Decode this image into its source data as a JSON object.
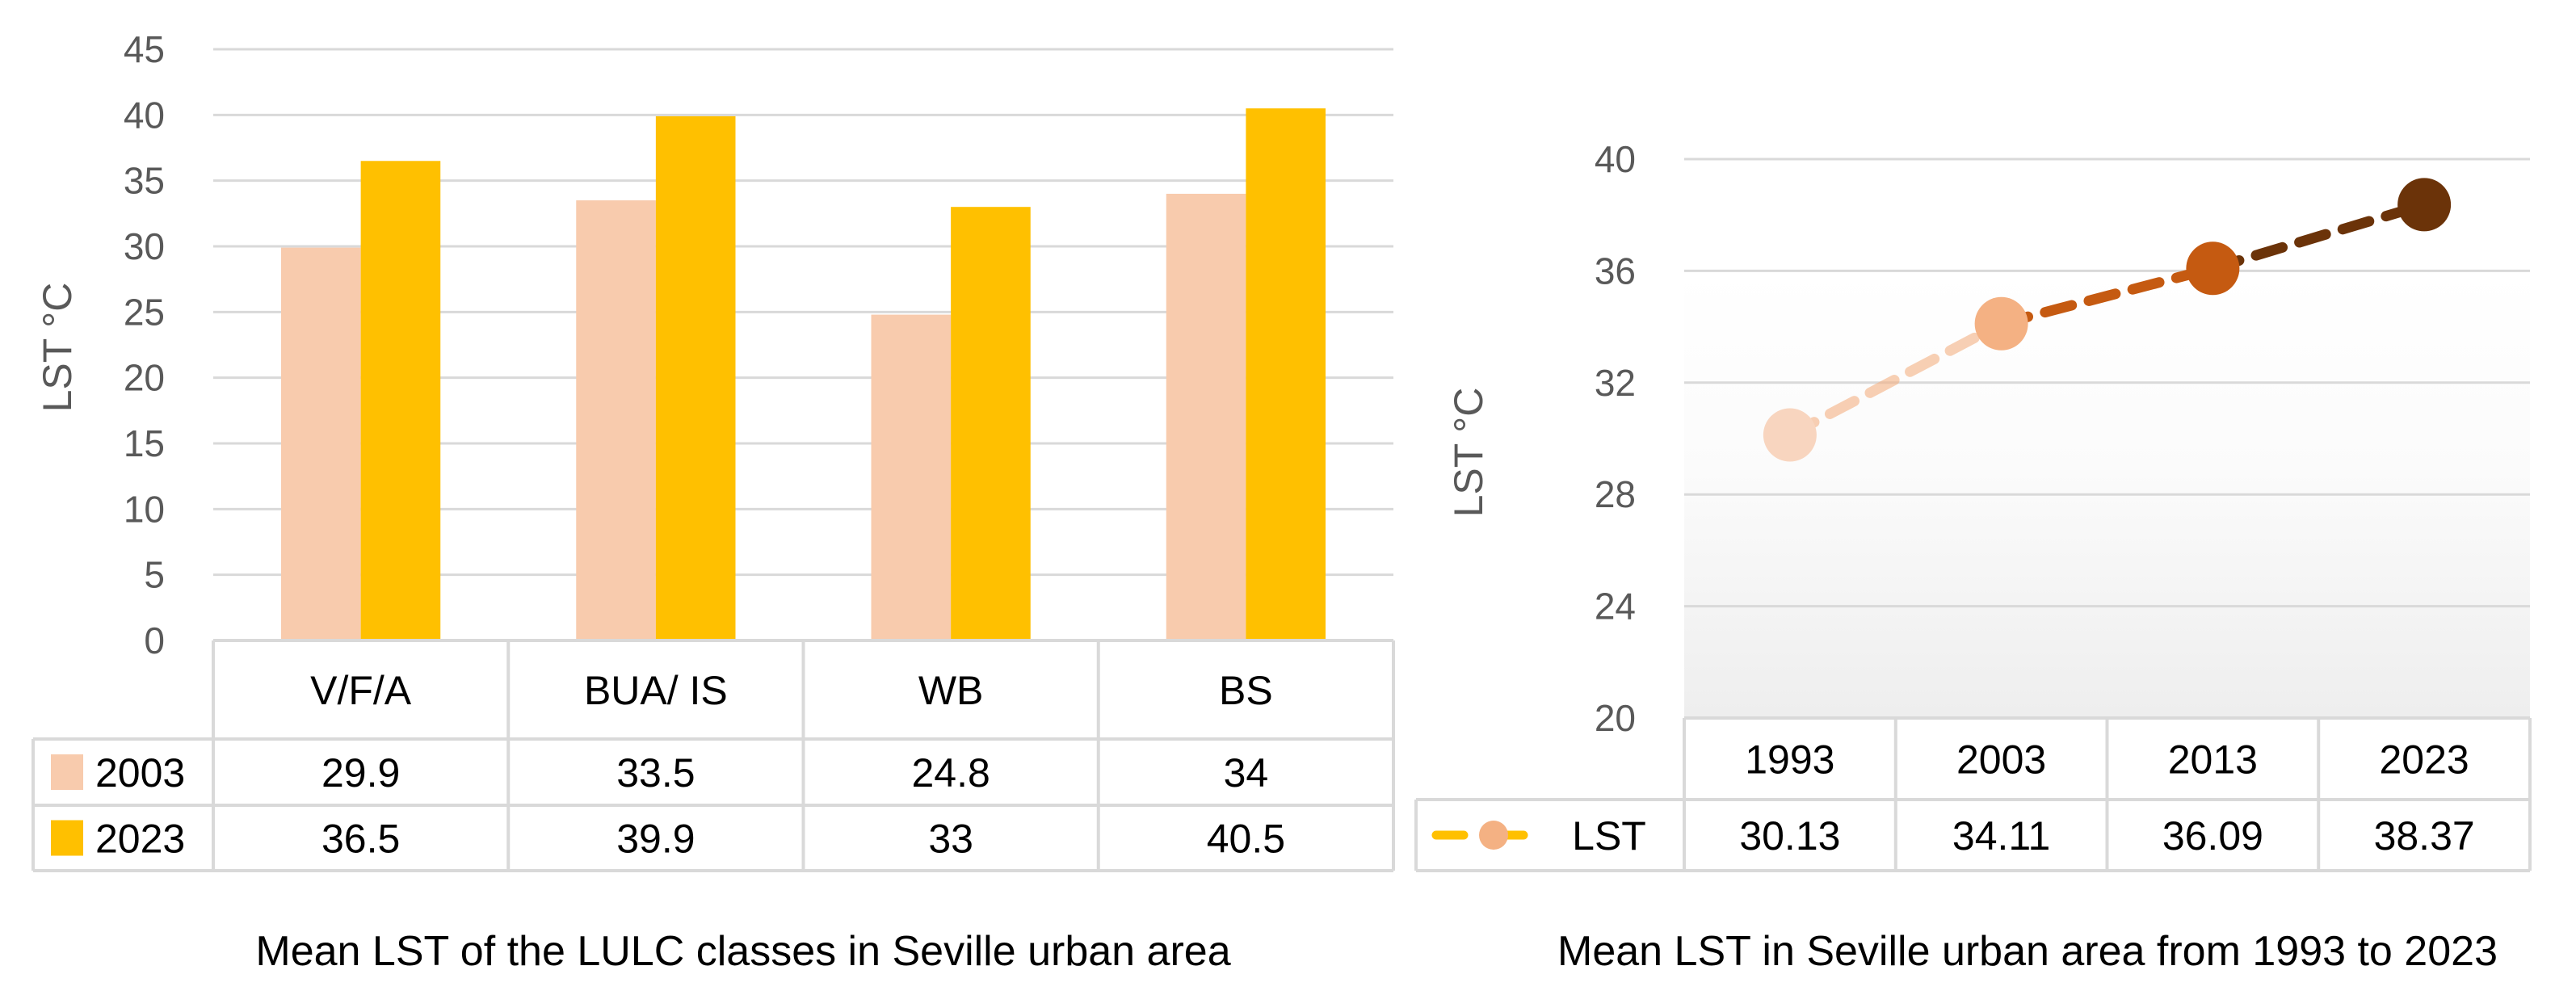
{
  "chart_data": [
    {
      "type": "bar",
      "title": "Mean LST of the LULC classes in Seville urban area",
      "ylabel": "LST    °C",
      "ylim": [
        0,
        45
      ],
      "yticks": [
        0,
        5,
        10,
        15,
        20,
        25,
        30,
        35,
        40,
        45
      ],
      "grid": true,
      "legend": "data-table",
      "categories": [
        "V/F/A",
        "BUA/ IS",
        "WB",
        "BS"
      ],
      "series": [
        {
          "name": "2003",
          "color": "#f8cbad",
          "values": [
            29.9,
            33.5,
            24.8,
            34
          ],
          "labels": [
            "29.9",
            "33.5",
            "24.8",
            "34"
          ]
        },
        {
          "name": "2023",
          "color": "#ffc000",
          "values": [
            36.5,
            39.9,
            33,
            40.5
          ],
          "labels": [
            "36.5",
            "39.9",
            "33",
            "40.5"
          ]
        }
      ]
    },
    {
      "type": "line",
      "title": "Mean LST in Seville urban area from 1993 to 2023",
      "ylabel": "LST   °C",
      "ylim": [
        20,
        40
      ],
      "yticks": [
        20,
        24,
        28,
        32,
        36,
        40
      ],
      "grid": true,
      "legend": "data-table",
      "categories": [
        "1993",
        "2003",
        "2013",
        "2023"
      ],
      "series": [
        {
          "name": "LST",
          "values": [
            30.13,
            34.11,
            36.09,
            38.37
          ],
          "labels": [
            "30.13",
            "34.11",
            "36.09",
            "38.37"
          ],
          "point_colors": [
            "#f8d5bf",
            "#f4b183",
            "#c55a11",
            "#6b3309"
          ],
          "legend_line_color": "#ffc000",
          "legend_marker_color": "#f4b183"
        }
      ]
    }
  ]
}
